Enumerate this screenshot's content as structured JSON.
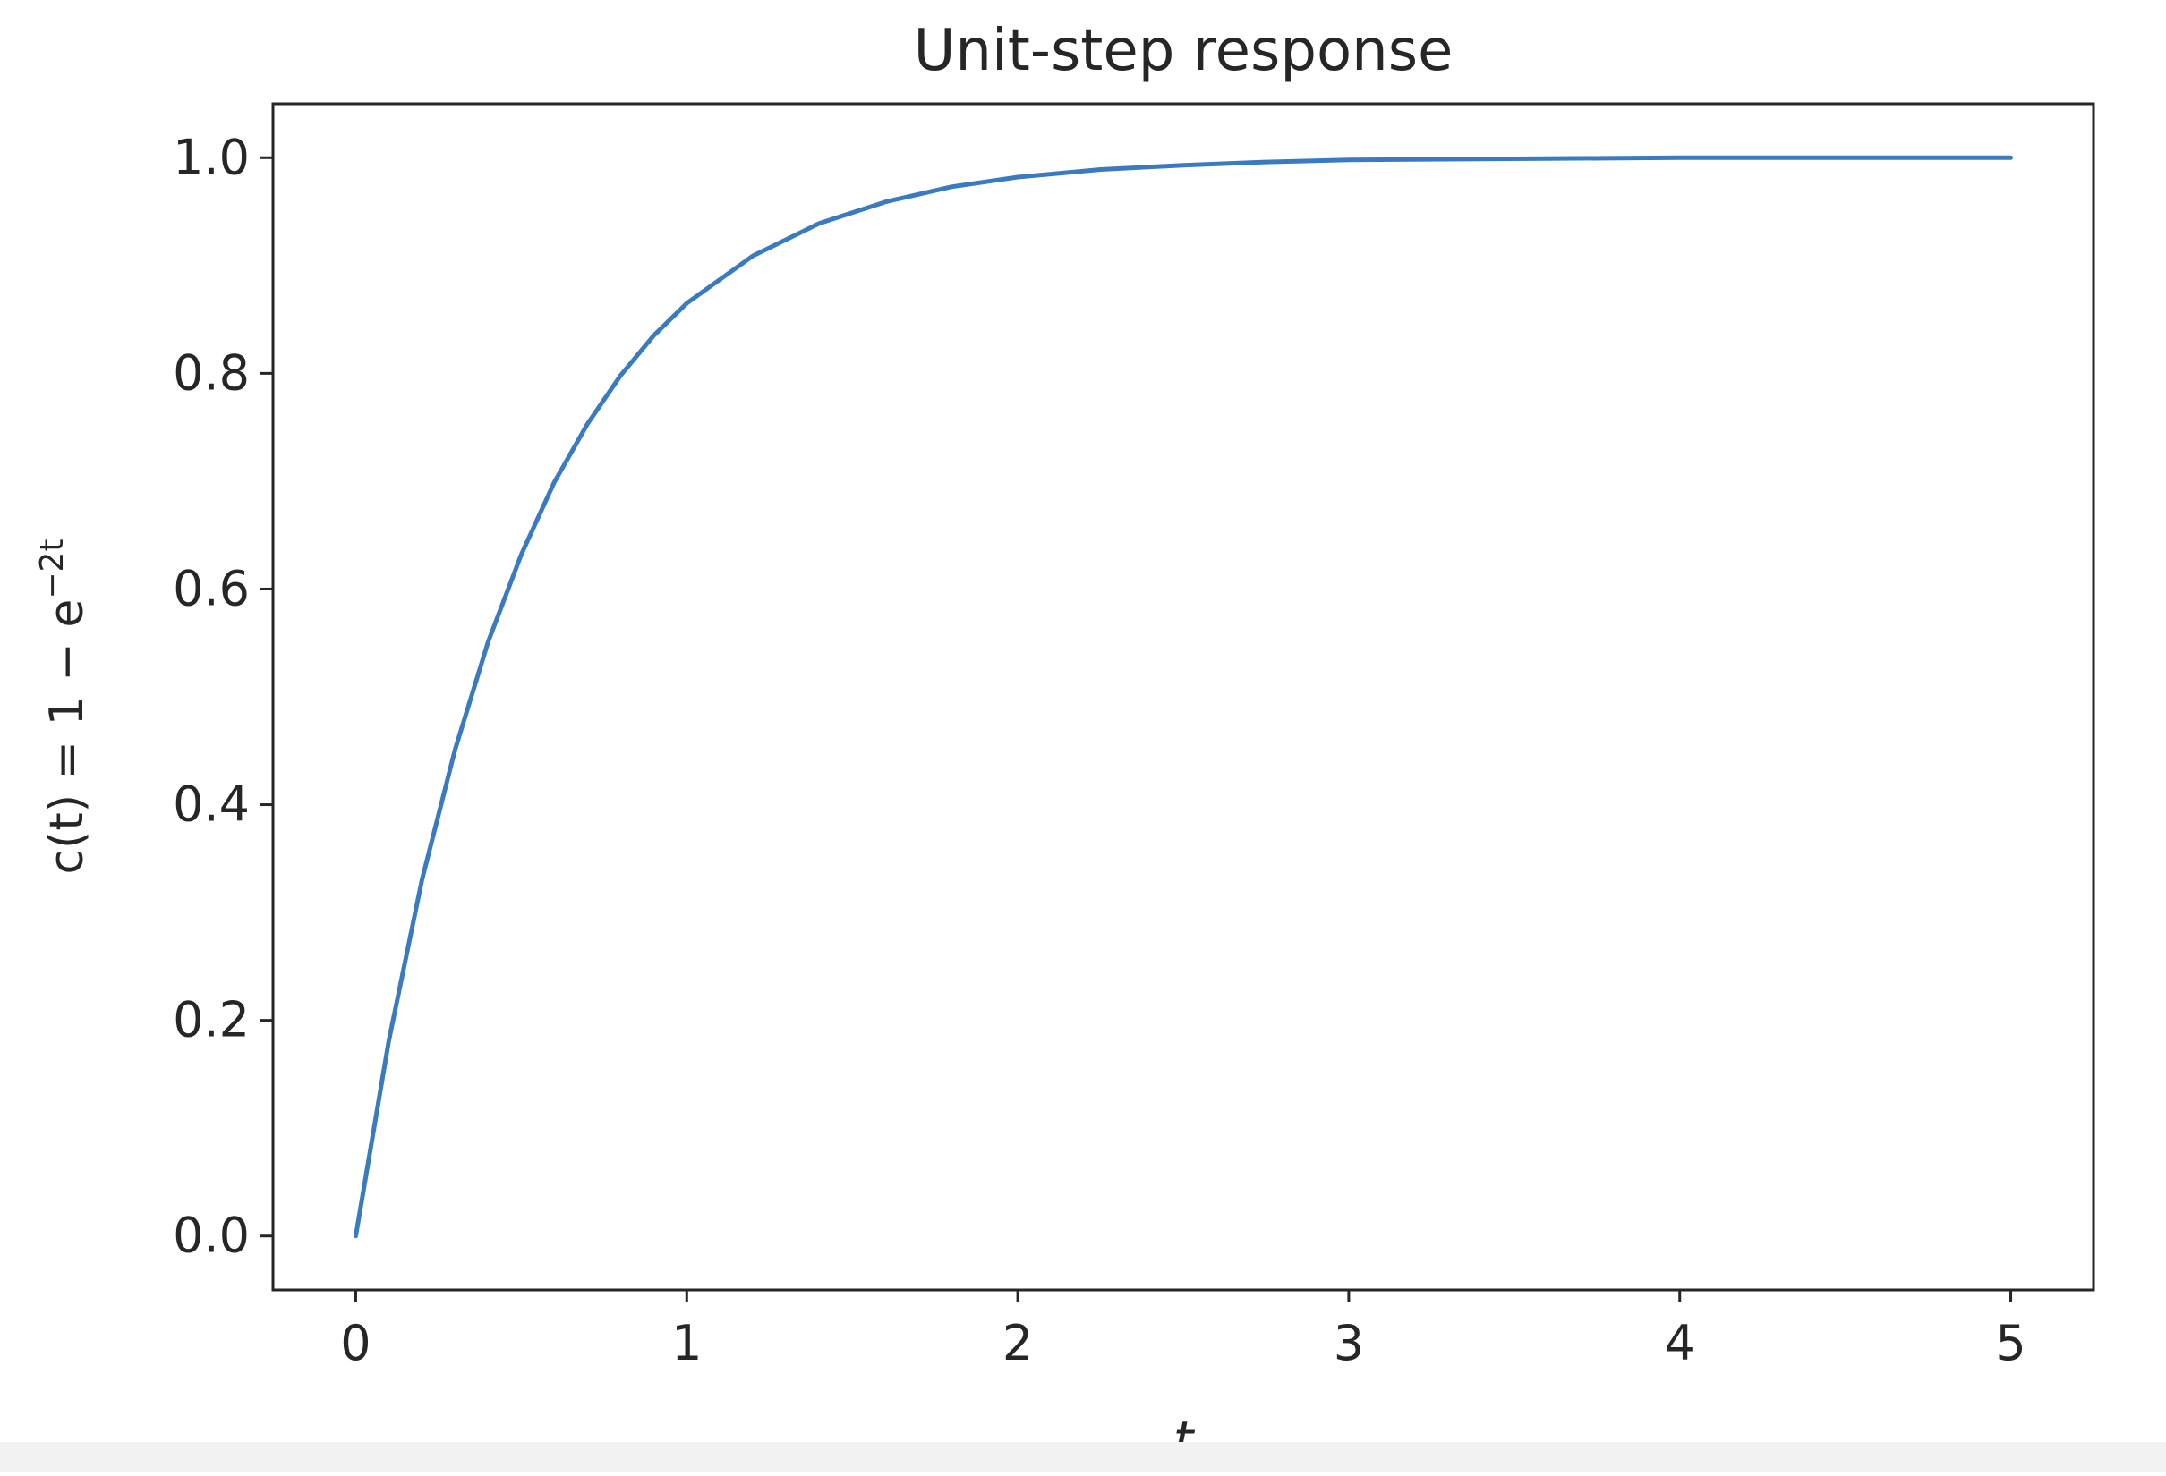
{
  "chart_data": {
    "type": "line",
    "title": "Unit-step response",
    "xlabel": "t",
    "ylabel": {
      "base": "c(t) = 1 − e",
      "superscript": "−2t"
    },
    "xlim": [
      -0.25,
      5.25
    ],
    "ylim": [
      -0.05,
      1.05
    ],
    "x_ticks": [
      0,
      1,
      2,
      3,
      4,
      5
    ],
    "x_tick_labels": [
      "0",
      "1",
      "2",
      "3",
      "4",
      "5"
    ],
    "y_ticks": [
      0.0,
      0.2,
      0.4,
      0.6,
      0.8,
      1.0
    ],
    "y_tick_labels": [
      "0.0",
      "0.2",
      "0.4",
      "0.6",
      "0.8",
      "1.0"
    ],
    "grid": false,
    "series": [
      {
        "color": "#3a7bbf",
        "x": [
          0,
          0.1,
          0.2,
          0.3,
          0.4,
          0.5,
          0.6,
          0.7,
          0.8,
          0.9,
          1.0,
          1.2,
          1.4,
          1.6,
          1.8,
          2.0,
          2.25,
          2.5,
          2.75,
          3.0,
          3.5,
          4.0,
          4.5,
          5.0
        ],
        "y": [
          0.0,
          0.181,
          0.33,
          0.451,
          0.551,
          0.632,
          0.699,
          0.753,
          0.798,
          0.835,
          0.865,
          0.909,
          0.939,
          0.959,
          0.973,
          0.982,
          0.989,
          0.993,
          0.996,
          0.998,
          0.999,
          1.0,
          1.0,
          1.0
        ]
      }
    ]
  }
}
